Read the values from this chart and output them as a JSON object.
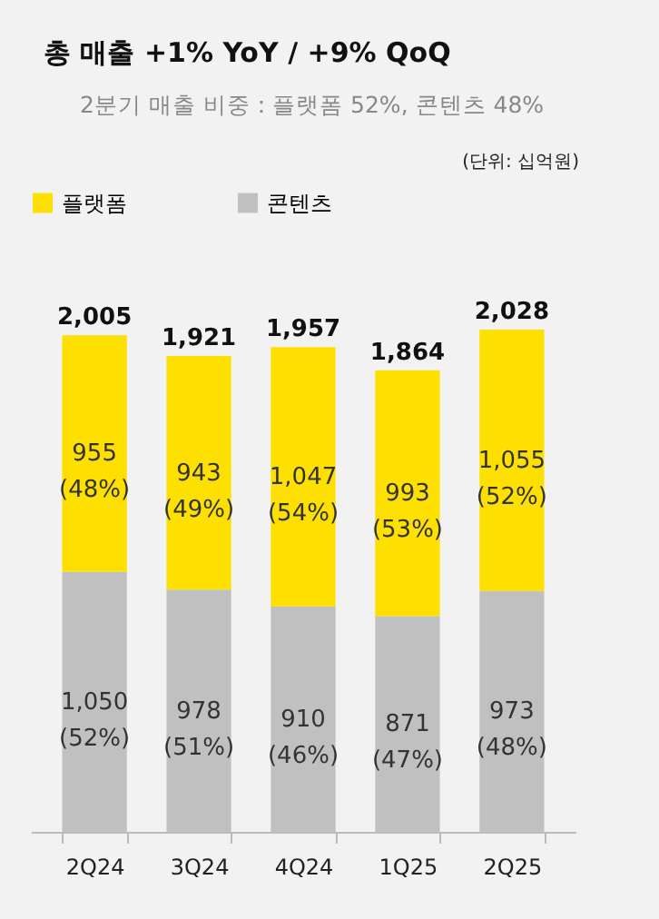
{
  "chart_data": {
    "type": "bar",
    "title": "총 매출 +1% YoY / +9% QoQ",
    "subtitle": "2분기 매출 비중 : 플랫폼 52%, 콘텐츠 48%",
    "annotations": [
      "(단위: 십억원)"
    ],
    "categories": [
      "2Q24",
      "3Q24",
      "4Q24",
      "1Q25",
      "2Q25"
    ],
    "stacked": true,
    "legend": "top",
    "series": [
      {
        "name": "콘텐츠",
        "color": "#c0c0c0",
        "values": [
          1050,
          978,
          910,
          871,
          973
        ],
        "value_labels": [
          "1,050 (52%)",
          "978 (51%)",
          "910 (46%)",
          "871 (47%)",
          "973 (48%)"
        ]
      },
      {
        "name": "플랫폼",
        "color": "#fde000",
        "values": [
          955,
          943,
          1047,
          993,
          1055
        ],
        "value_labels": [
          "955 (48%)",
          "943 (49%)",
          "1,047 (54%)",
          "993 (53%)",
          "1,055 (52%)"
        ]
      }
    ],
    "totals": [
      "2,005",
      "1,921",
      "1,957",
      "1,864",
      "2,028"
    ]
  }
}
